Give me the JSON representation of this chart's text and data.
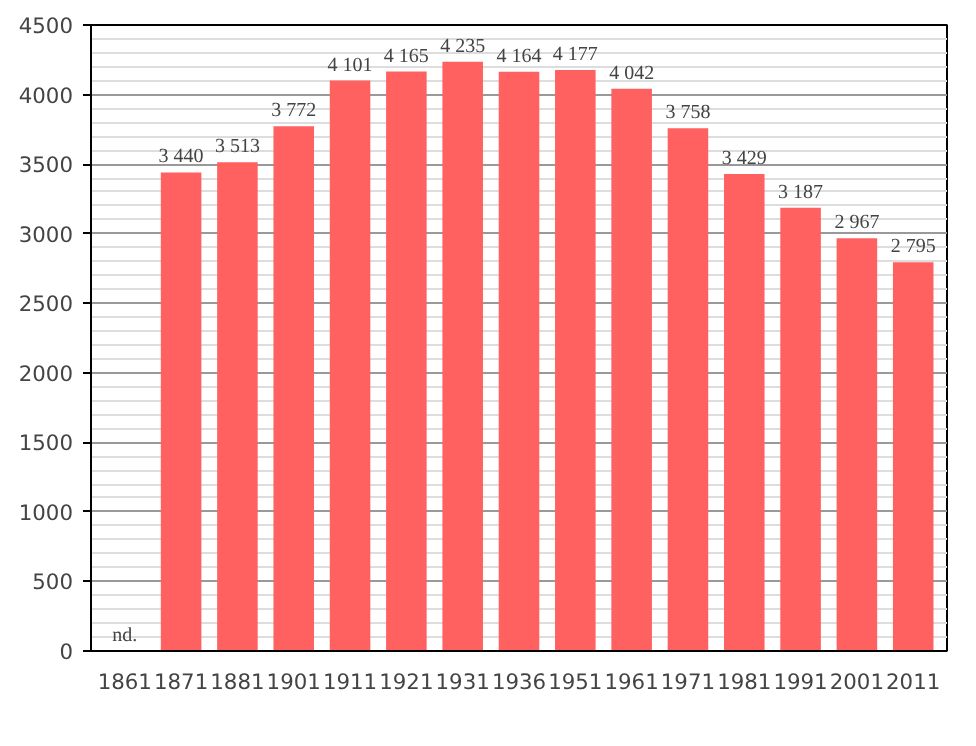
{
  "chart_data": {
    "type": "bar",
    "categories": [
      "1861",
      "1871",
      "1881",
      "1901",
      "1911",
      "1921",
      "1931",
      "1936",
      "1951",
      "1961",
      "1971",
      "1981",
      "1991",
      "2001",
      "2011"
    ],
    "values": [
      null,
      3440,
      3513,
      3772,
      4101,
      4165,
      4235,
      4164,
      4177,
      4042,
      3758,
      3429,
      3187,
      2967,
      2795
    ],
    "value_labels": [
      "nd.",
      "3 440",
      "3 513",
      "3 772",
      "4 101",
      "4 165",
      "4 235",
      "4 164",
      "4 177",
      "4 042",
      "3 758",
      "3 429",
      "3 187",
      "2 967",
      "2 795"
    ],
    "color": "#ff6060",
    "ylim": [
      0,
      4500
    ],
    "yticks": [
      0,
      500,
      1000,
      1500,
      2000,
      2500,
      3000,
      3500,
      4000,
      4500
    ],
    "grid": "y"
  }
}
